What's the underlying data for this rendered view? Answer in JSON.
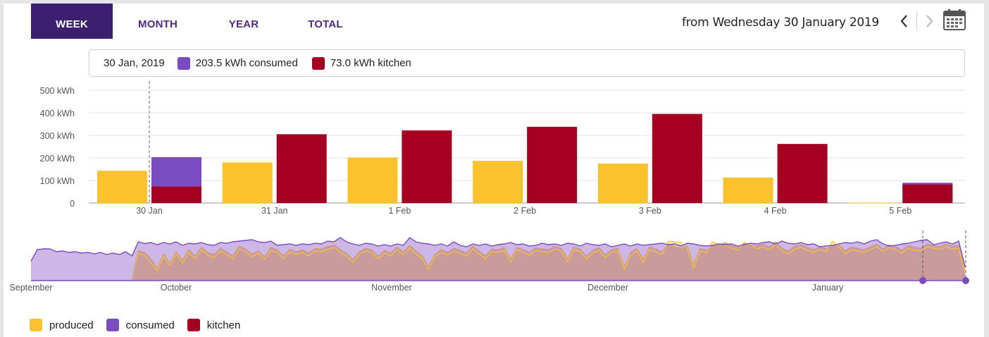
{
  "tabs": [
    {
      "label": "WEEK",
      "active": true
    },
    {
      "label": "MONTH",
      "active": false
    },
    {
      "label": "YEAR",
      "active": false
    },
    {
      "label": "TOTAL",
      "active": false
    }
  ],
  "range_label": "from Wednesday 30 January 2019",
  "icons": {
    "prev": "chevron-left-icon",
    "next": "chevron-right-icon",
    "calendar": "calendar-icon"
  },
  "tooltip": {
    "date": "30 Jan, 2019",
    "consumed_text": "203.5 kWh consumed",
    "kitchen_text": "73.0 kWh kitchen"
  },
  "colors": {
    "produced": "#fcc22e",
    "consumed": "#7b4cc0",
    "kitchen": "#a50021"
  },
  "legend": [
    {
      "label": "produced",
      "color": "#fcc22e"
    },
    {
      "label": "consumed",
      "color": "#7b4cc0"
    },
    {
      "label": "kitchen",
      "color": "#a50021"
    }
  ],
  "chart_data": [
    {
      "type": "bar",
      "categories": [
        "30 Jan",
        "31 Jan",
        "1 Feb",
        "2 Feb",
        "3 Feb",
        "4 Feb",
        "5 Feb"
      ],
      "series": [
        {
          "name": "produced",
          "values": [
            143,
            180,
            202,
            187,
            175,
            113,
            2
          ]
        },
        {
          "name": "consumed",
          "values": [
            203.5,
            300,
            320,
            335,
            393,
            258,
            90
          ]
        },
        {
          "name": "kitchen",
          "values": [
            73.0,
            305,
            322,
            338,
            395,
            262,
            82
          ]
        }
      ],
      "y_ticks": [
        "0",
        "100 kWh",
        "200 kWh",
        "300 kWh",
        "400 kWh",
        "500 kWh"
      ],
      "ylim": [
        0,
        500
      ],
      "grid": true,
      "highlighted_category": "30 Jan"
    },
    {
      "type": "area",
      "x_labels": [
        "September",
        "October",
        "November",
        "December",
        "January"
      ],
      "series": [
        {
          "name": "consumed",
          "values": [
            55,
            88,
            90,
            90,
            82,
            84,
            80,
            82,
            78,
            80,
            76,
            80,
            74,
            78,
            74,
            82,
            70,
            110,
            105,
            108,
            102,
            108,
            104,
            110,
            100,
            106,
            104,
            108,
            102,
            100,
            108,
            106,
            110,
            112,
            114,
            116,
            110,
            108,
            112,
            100,
            102,
            104,
            100,
            104,
            102,
            106,
            104,
            112,
            110,
            122,
            110,
            104,
            100,
            106,
            104,
            98,
            102,
            98,
            104,
            100,
            122,
            110,
            106,
            104,
            100,
            104,
            98,
            110,
            100,
            96,
            104,
            100,
            104,
            98,
            102,
            104,
            108,
            102,
            104,
            98,
            100,
            106,
            102,
            104,
            100,
            106,
            104,
            98,
            106,
            102,
            100,
            104,
            96,
            100,
            104,
            98,
            104,
            100,
            102,
            104,
            106,
            102,
            104,
            98,
            106,
            104,
            100,
            98,
            100,
            104,
            102,
            104,
            98,
            102,
            106,
            104,
            108,
            110,
            104,
            112,
            106,
            104,
            108,
            102,
            104,
            96,
            98,
            100,
            104,
            108,
            106,
            110,
            104,
            112,
            116,
            104,
            98,
            100,
            104,
            106,
            110,
            114,
            116,
            102,
            106,
            110,
            104,
            112,
            40
          ]
        },
        {
          "name": "kitchen",
          "values": [
            0,
            0,
            0,
            0,
            0,
            0,
            0,
            0,
            0,
            0,
            0,
            0,
            0,
            0,
            0,
            0,
            0,
            85,
            80,
            62,
            35,
            75,
            50,
            82,
            58,
            88,
            70,
            95,
            80,
            74,
            92,
            82,
            70,
            98,
            90,
            75,
            85,
            68,
            94,
            88,
            70,
            90,
            82,
            88,
            78,
            92,
            90,
            96,
            102,
            88,
            78,
            60,
            82,
            92,
            88,
            70,
            86,
            78,
            96,
            82,
            100,
            85,
            70,
            40,
            75,
            88,
            80,
            92,
            86,
            78,
            98,
            84,
            70,
            90,
            88,
            94,
            60,
            95,
            88,
            80,
            94,
            90,
            88,
            98,
            92,
            62,
            96,
            90,
            70,
            86,
            94,
            74,
            88,
            92,
            40,
            80,
            92,
            60,
            96,
            90,
            82,
            104,
            96,
            92,
            98,
            44,
            92,
            86,
            98,
            102,
            108,
            100,
            94,
            106,
            100,
            98,
            104,
            96,
            110,
            92,
            84,
            98,
            102,
            94,
            88,
            96,
            90,
            98,
            102,
            84,
            96,
            92,
            88,
            96,
            104,
            90,
            102,
            96,
            86,
            100,
            94,
            92,
            104,
            100,
            96,
            104,
            98,
            100,
            30
          ]
        },
        {
          "name": "produced",
          "values": [
            0,
            0,
            0,
            0,
            0,
            0,
            0,
            0,
            0,
            0,
            0,
            0,
            0,
            0,
            0,
            0,
            0,
            78,
            72,
            50,
            28,
            68,
            42,
            76,
            50,
            80,
            62,
            88,
            72,
            66,
            84,
            74,
            62,
            90,
            82,
            68,
            78,
            60,
            86,
            80,
            62,
            82,
            74,
            80,
            70,
            84,
            82,
            88,
            94,
            80,
            70,
            52,
            74,
            84,
            80,
            62,
            78,
            70,
            88,
            74,
            92,
            77,
            62,
            32,
            68,
            80,
            72,
            84,
            78,
            70,
            90,
            76,
            62,
            82,
            80,
            86,
            52,
            88,
            80,
            72,
            86,
            82,
            80,
            90,
            84,
            54,
            88,
            82,
            62,
            78,
            86,
            66,
            80,
            84,
            32,
            72,
            84,
            52,
            88,
            82,
            74,
            112,
            110,
            108,
            90,
            36,
            84,
            78,
            110,
            104,
            100,
            92,
            86,
            108,
            102,
            90,
            96,
            88,
            102,
            84,
            76,
            90,
            94,
            86,
            80,
            88,
            82,
            112,
            96,
            76,
            88,
            84,
            80,
            88,
            96,
            82,
            94,
            88,
            78,
            92,
            86,
            84,
            96,
            92,
            88,
            96,
            90,
            92,
            22
          ]
        }
      ]
    }
  ]
}
